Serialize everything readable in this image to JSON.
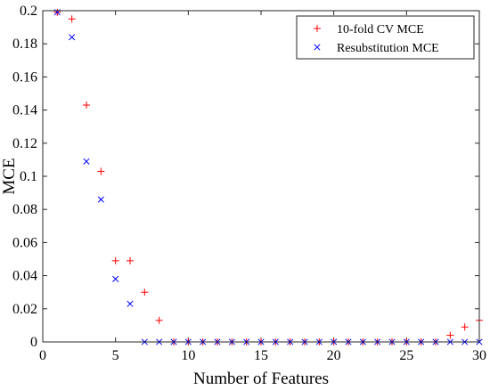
{
  "chart_data": {
    "type": "scatter",
    "title": "",
    "xlabel": "Number of Features",
    "ylabel": "MCE",
    "xlim": [
      0,
      30
    ],
    "ylim": [
      0,
      0.2
    ],
    "x_ticks": [
      0,
      5,
      10,
      15,
      20,
      25,
      30
    ],
    "y_ticks": [
      0,
      0.02,
      0.04,
      0.06,
      0.08,
      0.1,
      0.12,
      0.14,
      0.16,
      0.18,
      0.2
    ],
    "x_tick_labels": [
      "0",
      "5",
      "10",
      "15",
      "20",
      "25",
      "30"
    ],
    "y_tick_labels": [
      "0",
      "0.02",
      "0.04",
      "0.06",
      "0.08",
      "0.1",
      "0.12",
      "0.14",
      "0.16",
      "0.18",
      "0.2"
    ],
    "grid": false,
    "legend_position": "top-right",
    "x": [
      1,
      2,
      3,
      4,
      5,
      6,
      7,
      8,
      9,
      10,
      11,
      12,
      13,
      14,
      15,
      16,
      17,
      18,
      19,
      20,
      21,
      22,
      23,
      24,
      25,
      26,
      27,
      28,
      29,
      30
    ],
    "series": [
      {
        "name": "10-fold CV MCE",
        "marker": "plus",
        "color": "#ff0000",
        "values": [
          0.199,
          0.195,
          0.143,
          0.103,
          0.049,
          0.049,
          0.03,
          0.013,
          0,
          0,
          0,
          0,
          0,
          0,
          0,
          0,
          0,
          0,
          0,
          0,
          0,
          0,
          0,
          0,
          0,
          0,
          0,
          0.004,
          0.009,
          0.013
        ]
      },
      {
        "name": "Resubstitution MCE",
        "marker": "x",
        "color": "#0000ff",
        "values": [
          0.199,
          0.184,
          0.109,
          0.086,
          0.038,
          0.023,
          0,
          0,
          0,
          0,
          0,
          0,
          0,
          0,
          0,
          0,
          0,
          0,
          0,
          0,
          0,
          0,
          0,
          0,
          0,
          0,
          0,
          0,
          0,
          0
        ]
      }
    ]
  }
}
